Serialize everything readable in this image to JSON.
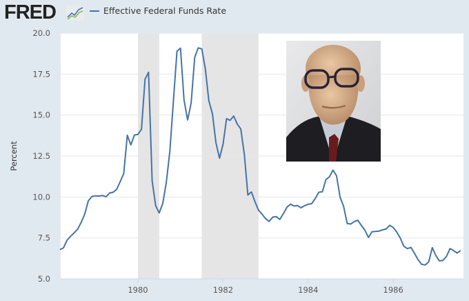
{
  "header": {
    "logo_text": "FRED",
    "legend_label": "Effective Federal Funds Rate"
  },
  "colors": {
    "line": "#4572a7",
    "background": "#e1e9f0",
    "recession": "#e5e5e5"
  },
  "photo": {
    "description_icon": "portrait-photo"
  },
  "chart_data": {
    "type": "line",
    "title": "",
    "xlabel": "",
    "ylabel": "Percent",
    "ylim": [
      5.0,
      20.0
    ],
    "xlim": [
      "1978-03",
      "1987-08"
    ],
    "grid": "horizontal",
    "legend_placement": "top-left",
    "yticks": [
      "5.0",
      "7.5",
      "10.0",
      "12.5",
      "15.0",
      "17.5",
      "20.0"
    ],
    "xticks": [
      "1980",
      "1982",
      "1984",
      "1986"
    ],
    "recessions": [
      [
        "1980-01",
        "1980-07"
      ],
      [
        "1981-07",
        "1982-11"
      ]
    ],
    "series": [
      {
        "name": "Effective Federal Funds Rate",
        "start": "1978-03",
        "frequency": "monthly",
        "values": [
          6.79,
          6.89,
          7.36,
          7.6,
          7.81,
          8.04,
          8.45,
          8.96,
          9.76,
          10.03,
          10.07,
          10.06,
          10.09,
          10.01,
          10.24,
          10.29,
          10.47,
          10.94,
          11.43,
          13.77,
          13.18,
          13.78,
          13.82,
          14.13,
          17.19,
          17.61,
          10.98,
          9.47,
          9.03,
          9.61,
          10.87,
          12.81,
          15.85,
          18.9,
          19.08,
          15.93,
          14.7,
          15.72,
          18.52,
          19.1,
          19.04,
          17.82,
          15.87,
          15.08,
          13.31,
          12.37,
          13.22,
          14.78,
          14.68,
          14.94,
          14.45,
          14.15,
          12.59,
          10.12,
          10.31,
          9.71,
          9.2,
          8.95,
          8.68,
          8.51,
          8.77,
          8.8,
          8.63,
          8.98,
          9.37,
          9.56,
          9.45,
          9.48,
          9.34,
          9.47,
          9.56,
          9.59,
          9.91,
          10.29,
          10.32,
          11.06,
          11.23,
          11.64,
          11.3,
          9.99,
          9.43,
          8.38,
          8.35,
          8.5,
          8.58,
          8.27,
          7.97,
          7.53,
          7.88,
          7.9,
          7.92,
          7.99,
          8.05,
          8.27,
          8.14,
          7.86,
          7.48,
          6.99,
          6.85,
          6.92,
          6.56,
          6.17,
          5.89,
          5.85,
          6.04,
          6.91,
          6.43,
          6.1,
          6.13,
          6.37,
          6.85,
          6.73,
          6.58,
          6.73
        ]
      }
    ]
  }
}
